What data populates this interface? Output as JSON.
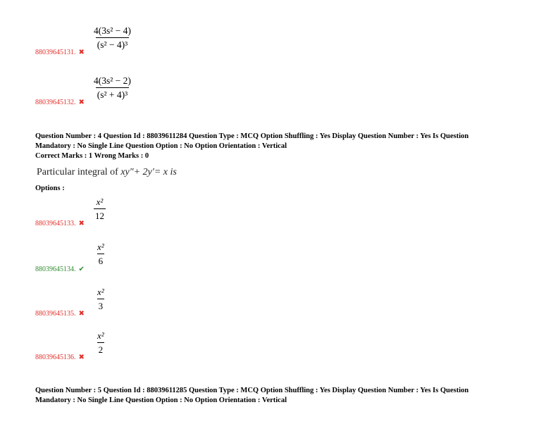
{
  "q3_options": [
    {
      "id": "88039645131.",
      "status": "wrong",
      "num": "4(3s² − 4)",
      "den": "(s² − 4)³"
    },
    {
      "id": "88039645132.",
      "status": "wrong",
      "num": "4(3s² − 2)",
      "den": "(s² + 4)³"
    }
  ],
  "q4": {
    "header_line1": "Question Number : 4 Question Id : 88039611284 Question Type : MCQ Option Shuffling : Yes Display Question Number : Yes Is Question",
    "header_line2": "Mandatory : No Single Line Question Option : No Option Orientation : Vertical",
    "marks": "Correct Marks : 1 Wrong Marks : 0",
    "question_prefix": "Particular integral of ",
    "question_math": "xy″+ 2y′= x is",
    "options_label": "Options :",
    "options": [
      {
        "id": "88039645133.",
        "status": "wrong",
        "num": "x²",
        "den": "12"
      },
      {
        "id": "88039645134.",
        "status": "correct",
        "num": "x²",
        "den": "6"
      },
      {
        "id": "88039645135.",
        "status": "wrong",
        "num": "x²",
        "den": "3"
      },
      {
        "id": "88039645136.",
        "status": "wrong",
        "num": "x²",
        "den": "2"
      }
    ]
  },
  "q5": {
    "header_line1": "Question Number : 5 Question Id : 88039611285 Question Type : MCQ Option Shuffling : Yes Display Question Number : Yes Is Question",
    "header_line2": "Mandatory : No Single Line Question Option : No Option Orientation : Vertical"
  },
  "icons": {
    "wrong": "✖",
    "correct": "✔"
  },
  "colors": {
    "wrong": "#e0302a",
    "correct": "#2e8b2e"
  }
}
